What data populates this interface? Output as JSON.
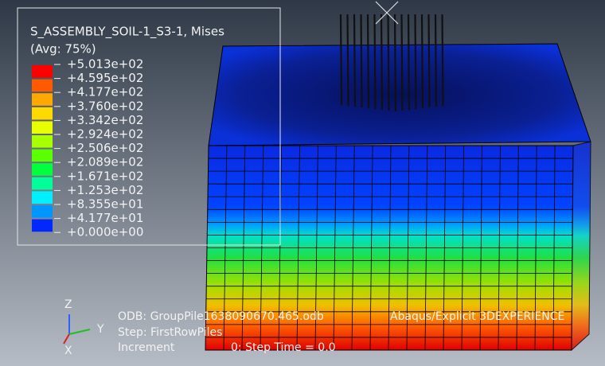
{
  "legend": {
    "title": "S_ASSEMBLY_SOIL-1_S3-1, Mises",
    "subtitle": "(Avg: 75%)",
    "levels": [
      "+5.013e+02",
      "+4.595e+02",
      "+4.177e+02",
      "+3.760e+02",
      "+3.342e+02",
      "+2.924e+02",
      "+2.506e+02",
      "+2.089e+02",
      "+1.671e+02",
      "+1.253e+02",
      "+8.355e+01",
      "+4.177e+01",
      "+0.000e+00"
    ],
    "colors": [
      "#ff0000",
      "#ff5a00",
      "#ffa800",
      "#ffd900",
      "#e7ff00",
      "#a8ff00",
      "#5aff00",
      "#00ff3c",
      "#00ff9a",
      "#00f0ff",
      "#0096ff",
      "#0028ff"
    ]
  },
  "info": {
    "odb": "ODB: GroupPile1638090670.465.odb",
    "product": "Abaqus/Explicit 3DEXPERIENCE",
    "step": "Step: FirstRowPiles",
    "increment": "Increment",
    "step_time": "0: Step Time = 0.0"
  },
  "triad": {
    "x": "X",
    "y": "Y",
    "z": "Z"
  }
}
